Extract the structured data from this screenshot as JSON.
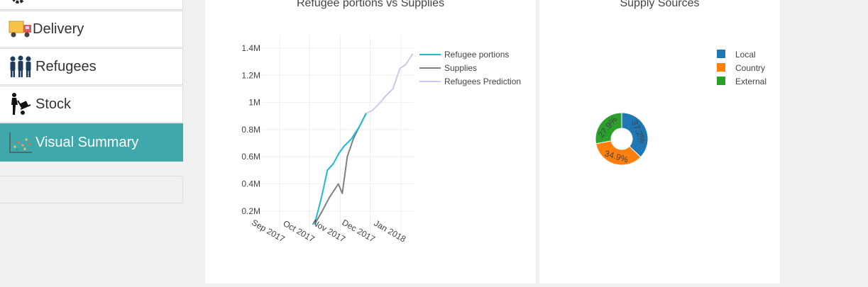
{
  "sidebar": {
    "items": [
      {
        "label": "",
        "icon": "gears-icon",
        "active": false
      },
      {
        "label": "Delivery",
        "icon": "delivery-truck-icon",
        "active": false
      },
      {
        "label": "Refugees",
        "icon": "people-icon",
        "active": false
      },
      {
        "label": "Stock",
        "icon": "hand-truck-icon",
        "active": false
      },
      {
        "label": "Visual Summary",
        "icon": "scatter-chart-icon",
        "active": true
      }
    ]
  },
  "colors": {
    "accent": "#3ea8aa",
    "refugee_portions": "#17becf",
    "supplies": "#7f7f7f",
    "prediction": "#c8cce8",
    "local": "#1f77b4",
    "country": "#ff7f0e",
    "external": "#2ca02c"
  },
  "chart_data": [
    {
      "type": "line",
      "title": "Refugee portions vs Supplies",
      "xlabel": "",
      "ylabel": "",
      "x_ticks": [
        "Sep 2017",
        "Oct 2017",
        "Nov 2017",
        "Dec 2017",
        "Jan 2018"
      ],
      "y_ticks": [
        "0.2M",
        "0.4M",
        "0.6M",
        "0.8M",
        "1M",
        "1.2M",
        "1.4M"
      ],
      "ylim": [
        0,
        1.4
      ],
      "grid": true,
      "legend": "top-right",
      "series": [
        {
          "name": "Refugee portions",
          "x": [
            "2017-10-06",
            "2017-10-13",
            "2017-10-19",
            "2017-10-25",
            "2017-10-31",
            "2017-11-05",
            "2017-11-12",
            "2017-11-20",
            "2017-11-27"
          ],
          "y": [
            0.1,
            0.3,
            0.5,
            0.55,
            0.63,
            0.68,
            0.73,
            0.82,
            0.92
          ]
        },
        {
          "name": "Supplies",
          "x": [
            "2017-10-06",
            "2017-10-13",
            "2017-10-21",
            "2017-10-30",
            "2017-11-03",
            "2017-11-08",
            "2017-11-14",
            "2017-11-20",
            "2017-11-27"
          ],
          "y": [
            0.1,
            0.19,
            0.3,
            0.4,
            0.33,
            0.6,
            0.73,
            0.82,
            0.92
          ]
        },
        {
          "name": "Refugees Prediction",
          "x": [
            "2017-11-27",
            "2017-12-03",
            "2017-12-10",
            "2017-12-17",
            "2017-12-24",
            "2017-12-31",
            "2018-01-06",
            "2018-01-13"
          ],
          "y": [
            0.92,
            0.94,
            0.99,
            1.05,
            1.1,
            1.25,
            1.28,
            1.36
          ]
        }
      ]
    },
    {
      "type": "pie",
      "title": "Supply Sources",
      "legend": "top-right",
      "hole": true,
      "labels": [
        "Local",
        "Country",
        "External"
      ],
      "values": [
        37.2,
        34.9,
        27.9
      ],
      "text": [
        "37.2%",
        "34.9%",
        "27.9%"
      ]
    }
  ]
}
